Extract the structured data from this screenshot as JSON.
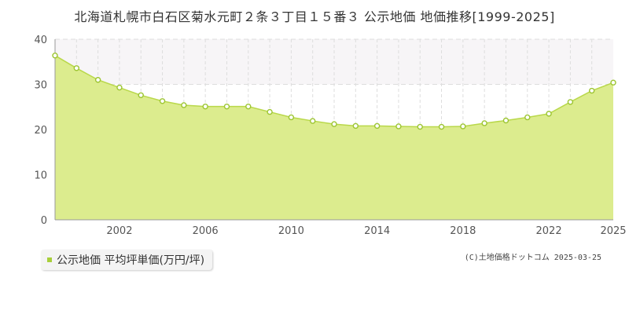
{
  "title": "北海道札幌市白石区菊水元町２条３丁目１５番３ 公示地価 地価推移[1999-2025]",
  "legend": {
    "label": "公示地価 平均坪単価(万円/坪)"
  },
  "copyright": "(C)土地価格ドットコム 2025-03-25",
  "colors": {
    "fill": "#dcec8e",
    "line": "#b9d84a",
    "point": "#9cc531",
    "top_band": "#f7f5f7",
    "grid": "#dddddd",
    "axis": "#999999"
  },
  "chart_data": {
    "type": "area",
    "title": "",
    "xlabel": "",
    "ylabel": "",
    "xlim": [
      1999,
      2025
    ],
    "ylim": [
      0,
      40
    ],
    "yticks": [
      0,
      10,
      20,
      30,
      40
    ],
    "xticks": [
      2002,
      2006,
      2010,
      2014,
      2018,
      2022,
      2025
    ],
    "grid": true,
    "legend_position": "bottom-left",
    "series": [
      {
        "name": "公示地価 平均坪単価(万円/坪)",
        "x": [
          1999,
          2000,
          2001,
          2002,
          2003,
          2004,
          2005,
          2006,
          2007,
          2008,
          2009,
          2010,
          2011,
          2012,
          2013,
          2014,
          2015,
          2016,
          2017,
          2018,
          2019,
          2020,
          2021,
          2022,
          2023,
          2024,
          2025
        ],
        "values": [
          36.4,
          33.6,
          31.0,
          29.3,
          27.6,
          26.3,
          25.4,
          25.1,
          25.1,
          25.1,
          23.9,
          22.7,
          21.9,
          21.2,
          20.8,
          20.8,
          20.7,
          20.6,
          20.6,
          20.7,
          21.4,
          22.0,
          22.7,
          23.5,
          26.1,
          28.6,
          30.4
        ]
      }
    ]
  }
}
